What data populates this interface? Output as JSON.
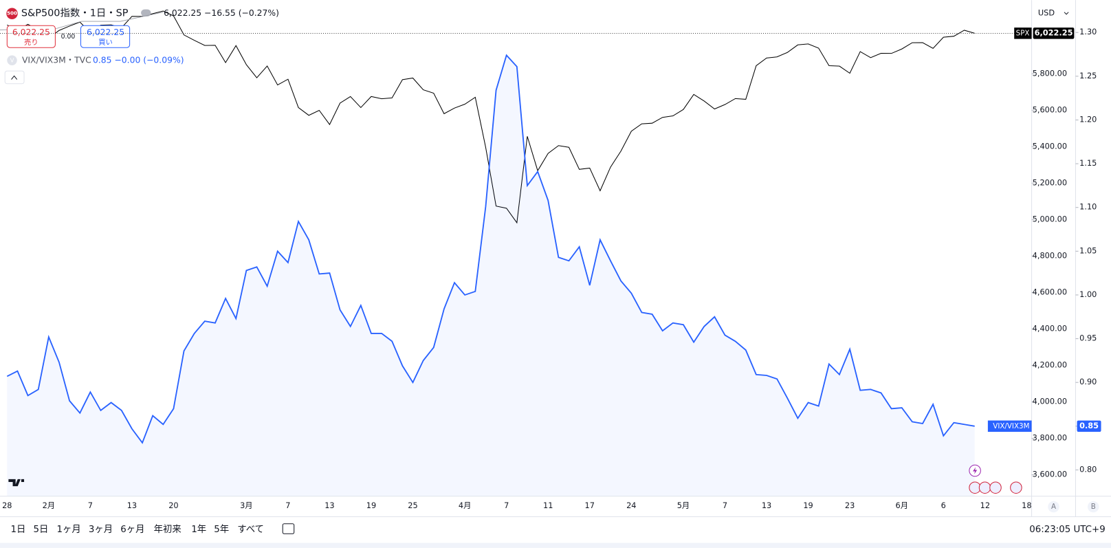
{
  "chart_data": {
    "type": "line",
    "legend": {
      "symbol_badge": "500",
      "title": "S&P500指数・1日・SP",
      "quote": "6,022.25 −16.55 (−0.27%)",
      "overlay_badge": "V",
      "overlay_title": "VIX/VIX3M・TVC",
      "overlay_quote": "0.85 −0.00 (−0.09%)"
    },
    "trade": {
      "sell_price": "6,022.25",
      "sell": "売り",
      "spread": "0.00",
      "buy_price": "6,022.25",
      "buy": "買い"
    },
    "currency": "USD",
    "scale_buttons": [
      "A",
      "B"
    ],
    "ranges": [
      "1日",
      "5日",
      "1ヶ月",
      "3ヶ月",
      "6ヶ月",
      "年初来",
      "1年",
      "5年",
      "すべて"
    ],
    "clock": "06:23:05 UTC+9",
    "categories": [
      "28",
      null,
      null,
      null,
      "2月",
      null,
      null,
      null,
      "7",
      null,
      null,
      null,
      "13",
      null,
      null,
      null,
      "20",
      null,
      null,
      null,
      null,
      null,
      null,
      "3月",
      null,
      null,
      null,
      "7",
      null,
      null,
      null,
      "13",
      null,
      null,
      null,
      "19",
      null,
      null,
      null,
      "25",
      null,
      null,
      null,
      null,
      "4月",
      null,
      null,
      null,
      "7",
      null,
      null,
      null,
      "11",
      null,
      null,
      null,
      "17",
      null,
      null,
      null,
      "24",
      null,
      null,
      null,
      null,
      "5月",
      null,
      null,
      null,
      "7",
      null,
      null,
      null,
      "13",
      null,
      null,
      null,
      "19",
      null,
      null,
      null,
      "23",
      null,
      null,
      null,
      null,
      "6月",
      null,
      null,
      null,
      "6",
      null,
      null,
      null,
      "12",
      null,
      null,
      null,
      "18"
    ],
    "series": [
      {
        "name": "SPX",
        "color": "#000000",
        "last_label": "6,022.25",
        "values": [
          6067.7,
          6039.31,
          6071.17,
          6040.53,
          5994.57,
          6037.88,
          6061.48,
          6083.57,
          6025.99,
          6066.44,
          6068.5,
          6051.97,
          6115.07,
          6114.63,
          6129.58,
          6144.15,
          6117.52,
          6013.13,
          5983.25,
          5955.25,
          5956.06,
          5861.57,
          5954.5,
          5849.72,
          5778.15,
          5842.63,
          5738.52,
          5770.2,
          5614.56,
          5572.07,
          5599.3,
          5521.52,
          5638.94,
          5675.12,
          5614.66,
          5675.29,
          5662.89,
          5667.56,
          5767.57,
          5776.65,
          5712.2,
          5693.31,
          5580.94,
          5611.85,
          5633.07,
          5670.97,
          5396.52,
          5074.08,
          5062.25,
          4982.77,
          5456.9,
          5268.05,
          5363.36,
          5405.97,
          5396.63,
          5275.7,
          5282.7,
          5158.2,
          5287.76,
          5375.86,
          5484.77,
          5525.21,
          5528.75,
          5560.83,
          5569.06,
          5604.14,
          5686.67,
          5650.38,
          5606.91,
          5631.28,
          5663.94,
          5659.91,
          5844.19,
          5886.55,
          5892.58,
          5916.93,
          5958.38,
          5963.6,
          5940.46,
          5844.61,
          5842.01,
          5802.82,
          5921.54,
          5888.55,
          5912.17,
          5911.69,
          5935.94,
          5970.37,
          5970.81,
          5939.3,
          6000.36,
          6005.88,
          6038.81,
          6022.25,
          null,
          null,
          null,
          null,
          null
        ]
      },
      {
        "name": "VIX/VIX3M",
        "color": "#2962ff",
        "axis": "y2",
        "fill": true,
        "last_label": "0.85",
        "values": [
          0.907,
          0.913,
          0.885,
          0.892,
          0.952,
          0.923,
          0.879,
          0.865,
          0.889,
          0.868,
          0.877,
          0.868,
          0.847,
          0.831,
          0.862,
          0.852,
          0.87,
          0.936,
          0.956,
          0.97,
          0.968,
          0.996,
          0.973,
          1.028,
          1.032,
          1.01,
          1.05,
          1.037,
          1.084,
          1.063,
          1.024,
          1.025,
          0.983,
          0.964,
          0.988,
          0.956,
          0.956,
          0.947,
          0.919,
          0.9,
          0.925,
          0.94,
          0.984,
          1.014,
          1.0,
          1.004,
          1.101,
          1.234,
          1.274,
          1.261,
          1.125,
          1.141,
          1.108,
          1.043,
          1.039,
          1.055,
          1.011,
          1.063,
          1.039,
          1.016,
          1.002,
          0.98,
          0.978,
          0.959,
          0.968,
          0.966,
          0.946,
          0.964,
          0.975,
          0.954,
          0.947,
          0.937,
          0.909,
          0.908,
          0.904,
          0.882,
          0.859,
          0.877,
          0.873,
          0.921,
          0.909,
          0.938,
          0.891,
          0.892,
          0.888,
          0.87,
          0.871,
          0.855,
          0.853,
          0.875,
          0.839,
          0.854,
          0.852,
          0.85,
          null,
          null,
          null,
          null,
          null
        ]
      }
    ],
    "ylim": [
      3483,
      6204
    ],
    "yticks": [
      {
        "value": 3600,
        "label": "3,600.00"
      },
      {
        "value": 3800,
        "label": "3,800.00"
      },
      {
        "value": 4000,
        "label": "4,000.00"
      },
      {
        "value": 4200,
        "label": "4,200.00"
      },
      {
        "value": 4400,
        "label": "4,400.00"
      },
      {
        "value": 4600,
        "label": "4,600.00"
      },
      {
        "value": 4800,
        "label": "4,800.00"
      },
      {
        "value": 5000,
        "label": "5,000.00"
      },
      {
        "value": 5200,
        "label": "5,200.00"
      },
      {
        "value": 5400,
        "label": "5,400.00"
      },
      {
        "value": 5600,
        "label": "5,600.00"
      },
      {
        "value": 5800,
        "label": "5,800.00"
      }
    ],
    "y2lim": [
      0.77,
      1.337
    ],
    "y2ticks": [
      {
        "value": 0.8,
        "label": "0.80"
      },
      {
        "value": 0.85,
        "label": "0.85"
      },
      {
        "value": 0.9,
        "label": "0.90"
      },
      {
        "value": 0.95,
        "label": "0.95"
      },
      {
        "value": 1.0,
        "label": "1.00"
      },
      {
        "value": 1.05,
        "label": "1.05"
      },
      {
        "value": 1.1,
        "label": "1.10"
      },
      {
        "value": 1.15,
        "label": "1.15"
      },
      {
        "value": 1.2,
        "label": "1.20"
      },
      {
        "value": 1.25,
        "label": "1.25"
      },
      {
        "value": 1.3,
        "label": "1.30"
      }
    ],
    "grid": false
  }
}
